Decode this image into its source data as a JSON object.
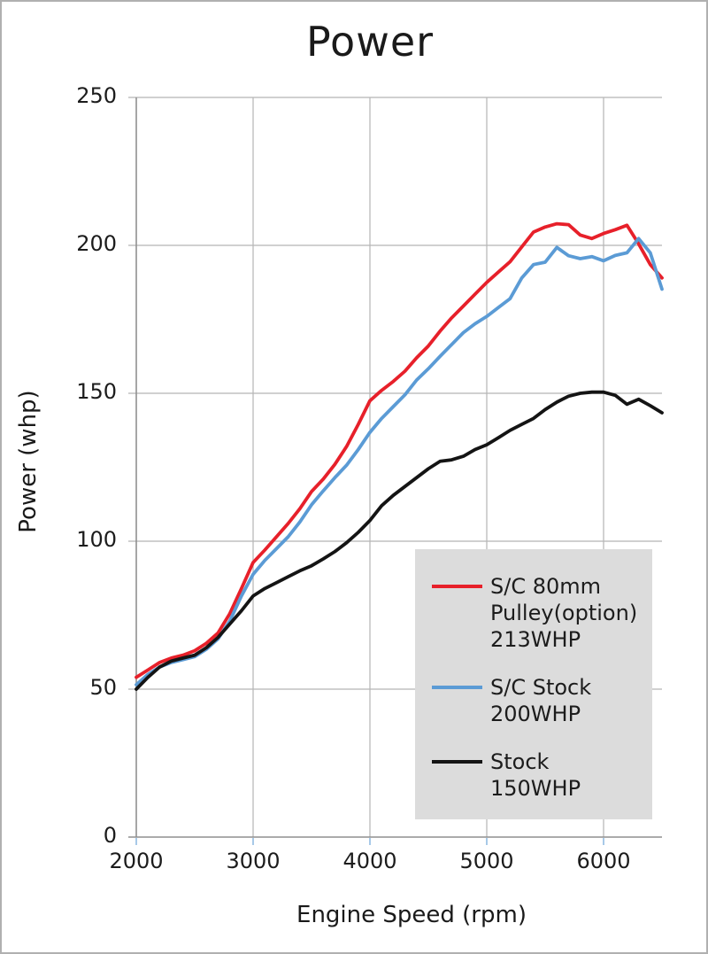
{
  "title": "Power",
  "chart_data": {
    "type": "line",
    "title": "Power",
    "xlabel": "Engine Speed (rpm)",
    "ylabel": "Power (whp)",
    "xlim": [
      2000,
      6500
    ],
    "ylim": [
      0,
      250
    ],
    "x_ticks": [
      2000,
      3000,
      4000,
      5000,
      6000
    ],
    "y_ticks": [
      0,
      50,
      100,
      150,
      200,
      250
    ],
    "grid": true,
    "legend_position": "inside-bottom-right",
    "x": [
      2000,
      2100,
      2200,
      2300,
      2400,
      2500,
      2600,
      2700,
      2800,
      2900,
      3000,
      3100,
      3200,
      3300,
      3400,
      3500,
      3600,
      3700,
      3800,
      3900,
      4000,
      4100,
      4200,
      4300,
      4400,
      4500,
      4600,
      4700,
      4800,
      4900,
      5000,
      5100,
      5200,
      5300,
      5400,
      5500,
      5600,
      5700,
      5800,
      5900,
      6000,
      6100,
      6200,
      6300,
      6400,
      6500
    ],
    "series": [
      {
        "name": "S/C 80mm Pulley(option) 213WHP",
        "legend_lines": [
          "S/C 80mm",
          "Pulley(option)",
          "213WHP"
        ],
        "color": "#e7202a",
        "values": [
          54,
          56.5,
          59,
          60.5,
          61.5,
          63,
          65.5,
          69,
          75.5,
          84,
          92.8,
          97,
          101.5,
          106,
          111,
          116.8,
          121,
          126,
          132,
          139.5,
          147.5,
          151,
          154,
          157.5,
          162,
          166,
          171,
          175.5,
          179.5,
          183.5,
          187.5,
          191,
          194.5,
          199.5,
          204.5,
          206.2,
          207.3,
          207,
          203.5,
          202.3,
          204,
          205.3,
          206.8,
          200.5,
          193.5,
          189
        ]
      },
      {
        "name": "S/C Stock 200WHP",
        "legend_lines": [
          "S/C Stock",
          "200WHP"
        ],
        "color": "#5b9bd5",
        "values": [
          51.5,
          55,
          57.5,
          59,
          60,
          61,
          63.5,
          67,
          73,
          81.5,
          88.8,
          93.5,
          97.5,
          101.5,
          106.5,
          112.3,
          117,
          121.5,
          125.7,
          131,
          136.8,
          141.5,
          145.5,
          149.5,
          154.5,
          158.3,
          162.5,
          166.5,
          170.5,
          173.5,
          176,
          179,
          182,
          189,
          193.5,
          194.3,
          199.3,
          196.5,
          195.5,
          196.2,
          194.8,
          196.6,
          197.5,
          202.3,
          197.5,
          185.2
        ]
      },
      {
        "name": "Stock 150WHP",
        "legend_lines": [
          "Stock",
          "150WHP"
        ],
        "color": "#141414",
        "values": [
          50,
          54,
          57.5,
          59.5,
          60.5,
          61.5,
          64,
          67.5,
          72,
          76.5,
          81.5,
          84,
          86,
          88,
          90,
          91.7,
          94,
          96.5,
          99.5,
          103,
          107,
          112,
          115.5,
          118.5,
          121.5,
          124.5,
          127,
          127.5,
          128.7,
          131,
          132.6,
          135,
          137.5,
          139.5,
          141.5,
          144.5,
          147,
          149,
          150,
          150.4,
          150.4,
          149.3,
          146.3,
          148,
          145.8,
          143.4
        ]
      }
    ]
  },
  "colors": {
    "grid": "#b5b5b5",
    "axis": "#8f8f8f",
    "x_tick_mark": "#a7c9e8",
    "legend_bg": "#dcdcdc",
    "text": "#1c1c1c",
    "background": "#ffffff",
    "border": "#b0b0b0"
  }
}
